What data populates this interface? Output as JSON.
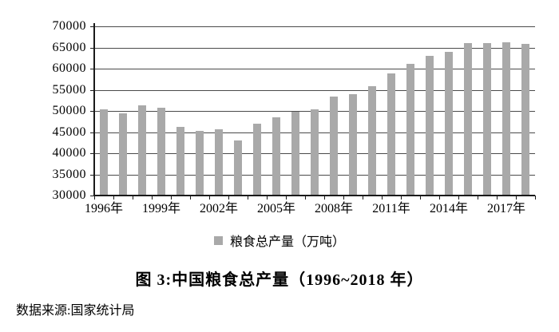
{
  "figure": {
    "caption": "图 3:中国粮食总产量（1996~2018 年）",
    "source": "数据来源:国家统计局"
  },
  "legend": {
    "label": "粮食总产量（万吨）"
  },
  "colors": {
    "bar": "#a9a9a9",
    "gridline": "#4a4a4a",
    "axis": "#1a1a1a",
    "text": "#000000",
    "background": "#ffffff"
  },
  "chart_data": {
    "type": "bar",
    "title": "图 3:中国粮食总产量（1996~2018 年）",
    "series_name": "粮食总产量（万吨）",
    "categories": [
      "1996",
      "1997",
      "1998",
      "1999",
      "2000",
      "2001",
      "2002",
      "2003",
      "2004",
      "2005",
      "2006",
      "2007",
      "2008",
      "2009",
      "2010",
      "2011",
      "2012",
      "2013",
      "2014",
      "2015",
      "2016",
      "2017",
      "2018"
    ],
    "values": [
      50453.5,
      49417.1,
      51229.5,
      50838.6,
      46217.5,
      45263.7,
      45705.8,
      43069.5,
      46946.9,
      48402.2,
      49804.2,
      50413.9,
      53434.3,
      53940.9,
      55911.3,
      58849.3,
      61222.6,
      63048.2,
      63964.8,
      66060.3,
      66043.5,
      66160.7,
      65789.2
    ],
    "ylim": [
      30000,
      70000
    ],
    "ytick_step": 5000,
    "ytick_labels": [
      "30000",
      "35000",
      "40000",
      "45000",
      "50000",
      "55000",
      "60000",
      "65000",
      "70000"
    ],
    "x_tick_labels": [
      "1996年",
      "1999年",
      "2002年",
      "2005年",
      "2008年",
      "2011年",
      "2014年",
      "2017年"
    ],
    "x_tick_label_indices": [
      0,
      3,
      6,
      9,
      12,
      15,
      18,
      21
    ],
    "grid": "horizontal",
    "legend_position": "bottom",
    "xlabel": "",
    "ylabel": ""
  }
}
